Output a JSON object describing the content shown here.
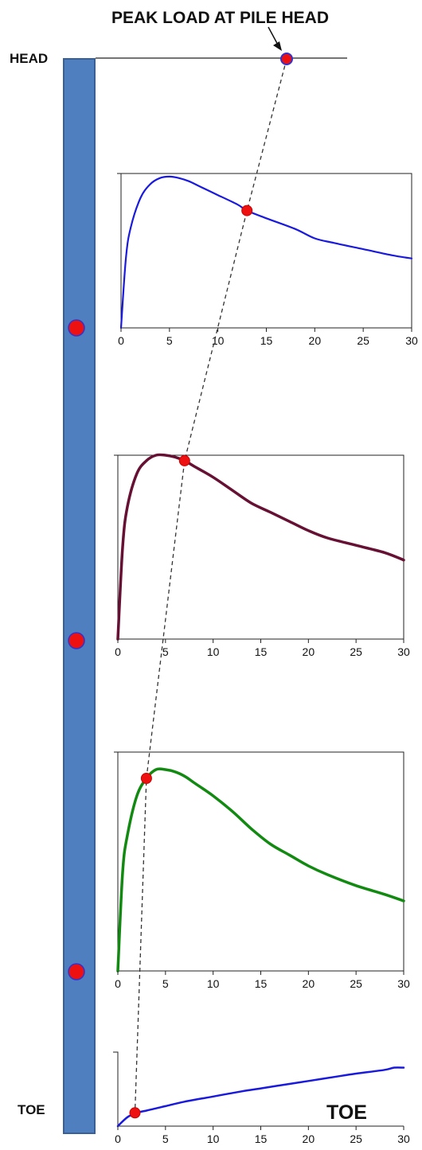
{
  "labels": {
    "title": "PEAK LOAD AT PILE HEAD",
    "head": "HEAD",
    "toe_left": "TOE",
    "toe_chart": "TOE"
  },
  "colors": {
    "pile": "#4f7fbf",
    "pile_border": "#3a5f95",
    "marker": "#ee1111",
    "marker_ring": "#3333cc",
    "dashed_line": "#333333"
  },
  "chart_data": [
    {
      "type": "line",
      "xlim": [
        0,
        30
      ],
      "xticks": [
        0,
        5,
        10,
        15,
        20,
        25,
        30
      ],
      "series": [
        {
          "color": "#1a1add",
          "x": [
            0,
            0.5,
            1,
            2,
            3,
            4,
            5,
            6,
            7,
            8,
            10,
            12,
            13,
            15,
            18,
            20,
            22,
            25,
            28,
            30
          ],
          "y": [
            0,
            0.45,
            0.65,
            0.84,
            0.93,
            0.97,
            0.98,
            0.97,
            0.95,
            0.92,
            0.86,
            0.8,
            0.76,
            0.71,
            0.64,
            0.58,
            0.55,
            0.51,
            0.47,
            0.45
          ]
        }
      ],
      "peak_marker": {
        "x": 13,
        "y": 0.76
      }
    },
    {
      "type": "line",
      "xlim": [
        0,
        30
      ],
      "xticks": [
        0,
        5,
        10,
        15,
        20,
        25,
        30
      ],
      "series": [
        {
          "color": "#661133",
          "x": [
            0,
            0.5,
            1,
            2,
            3,
            4,
            5,
            6,
            7,
            8,
            10,
            12,
            14,
            16,
            18,
            20,
            22,
            25,
            28,
            30
          ],
          "y": [
            0,
            0.5,
            0.72,
            0.9,
            0.97,
            1.0,
            1.0,
            0.99,
            0.97,
            0.94,
            0.88,
            0.81,
            0.74,
            0.69,
            0.64,
            0.59,
            0.55,
            0.51,
            0.47,
            0.43
          ]
        }
      ],
      "peak_marker": {
        "x": 7,
        "y": 0.97
      }
    },
    {
      "type": "line",
      "xlim": [
        0,
        30
      ],
      "xticks": [
        0,
        5,
        10,
        15,
        20,
        25,
        30
      ],
      "series": [
        {
          "color": "#128a12",
          "x": [
            0,
            0.5,
            1,
            2,
            3,
            4,
            5,
            6,
            7,
            8,
            10,
            12,
            14,
            16,
            18,
            20,
            22,
            25,
            28,
            30
          ],
          "y": [
            0,
            0.45,
            0.62,
            0.8,
            0.88,
            0.92,
            0.92,
            0.91,
            0.89,
            0.86,
            0.8,
            0.73,
            0.65,
            0.58,
            0.53,
            0.48,
            0.44,
            0.39,
            0.35,
            0.32
          ]
        }
      ],
      "peak_marker": {
        "x": 3,
        "y": 0.88
      }
    },
    {
      "type": "line",
      "xlim": [
        0,
        30
      ],
      "xticks": [
        0,
        5,
        10,
        15,
        20,
        25,
        30
      ],
      "series": [
        {
          "color": "#1a1add",
          "x": [
            0,
            1,
            2,
            3,
            4,
            5,
            7,
            10,
            13,
            15,
            18,
            20,
            23,
            25,
            28,
            29,
            30
          ],
          "y": [
            0,
            0.12,
            0.18,
            0.21,
            0.24,
            0.27,
            0.33,
            0.4,
            0.47,
            0.51,
            0.57,
            0.61,
            0.67,
            0.71,
            0.76,
            0.79,
            0.79
          ]
        }
      ],
      "peak_marker": {
        "x": 1.8,
        "y": 0.18
      }
    }
  ]
}
